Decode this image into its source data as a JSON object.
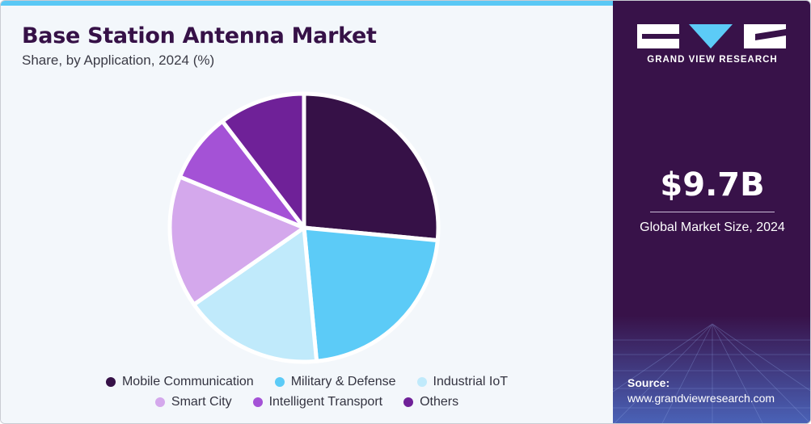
{
  "header": {
    "title": "Base Station Antenna Market",
    "subtitle": "Share, by Application, 2024 (%)"
  },
  "chart_data": {
    "type": "pie",
    "title": "Base Station Antenna Market",
    "subtitle": "Share, by Application, 2024 (%)",
    "start_angle_deg": 0,
    "direction": "clockwise",
    "legend_position": "bottom",
    "slices": [
      {
        "label": "Mobile Communication",
        "value": 26.5,
        "color": "#361147"
      },
      {
        "label": "Military & Defense",
        "value": 22.0,
        "color": "#5ccbf7"
      },
      {
        "label": "Industrial IoT",
        "value": 16.8,
        "color": "#c0eafb"
      },
      {
        "label": "Smart City",
        "value": 15.9,
        "color": "#d4a8ec"
      },
      {
        "label": "Intelligent Transport",
        "value": 8.4,
        "color": "#a452d6"
      },
      {
        "label": "Others",
        "value": 10.4,
        "color": "#6f2198"
      }
    ]
  },
  "legend": {
    "row1": [
      {
        "label": "Mobile Communication",
        "color": "#361147"
      },
      {
        "label": "Military & Defense",
        "color": "#5ccbf7"
      },
      {
        "label": "Industrial IoT",
        "color": "#c0eafb"
      }
    ],
    "row2": [
      {
        "label": "Smart City",
        "color": "#d4a8ec"
      },
      {
        "label": "Intelligent Transport",
        "color": "#a452d6"
      },
      {
        "label": "Others",
        "color": "#6f2198"
      }
    ]
  },
  "sidebar": {
    "brand": "GRAND VIEW RESEARCH",
    "market_size_value": "$9.7B",
    "market_size_label": "Global Market Size, 2024",
    "source_label": "Source:",
    "source_url": "www.grandviewresearch.com"
  },
  "colors": {
    "brand_dark": "#381249",
    "accent": "#5ac8f5",
    "background": "#f3f7fb"
  }
}
